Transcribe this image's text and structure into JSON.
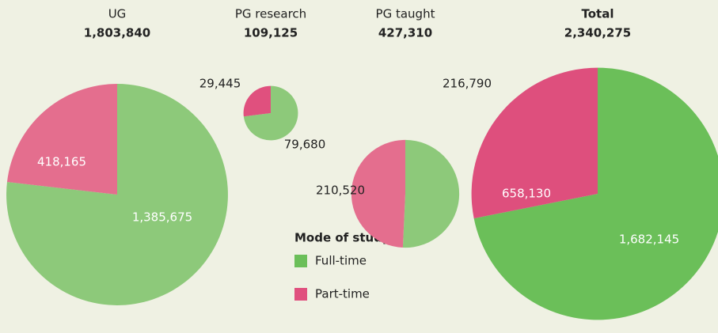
{
  "chart_data": [
    {
      "type": "pie",
      "title": "UG",
      "total": {
        "value": 1803840,
        "label": "1,803,840"
      },
      "categories": [
        "Full-time",
        "Part-time"
      ],
      "values": [
        1385675,
        418165
      ],
      "value_labels": [
        "1,385,675",
        "418,165"
      ],
      "colors": [
        "#8dc97a",
        "#e46e8e"
      ]
    },
    {
      "type": "pie",
      "title": "PG research",
      "total": {
        "value": 109125,
        "label": "109,125"
      },
      "categories": [
        "Full-time",
        "Part-time"
      ],
      "values": [
        79680,
        29445
      ],
      "value_labels": [
        "79,680",
        "29,445"
      ],
      "colors": [
        "#8dc97a",
        "#e0507e"
      ]
    },
    {
      "type": "pie",
      "title": "PG taught",
      "total": {
        "value": 427310,
        "label": "427,310"
      },
      "categories": [
        "Full-time",
        "Part-time"
      ],
      "values": [
        216790,
        210520
      ],
      "value_labels": [
        "216,790",
        "210,520"
      ],
      "colors": [
        "#8dc97a",
        "#e46e8e"
      ]
    },
    {
      "type": "pie",
      "title": "Total",
      "total": {
        "value": 2340275,
        "label": "2,340,275"
      },
      "categories": [
        "Full-time",
        "Part-time"
      ],
      "values": [
        1682145,
        658130
      ],
      "value_labels": [
        "1,682,145",
        "658,130"
      ],
      "colors": [
        "#6bbf59",
        "#de4f7d"
      ]
    }
  ],
  "legend_title": "Mode of study",
  "legend_colors": [
    "#6bbf59",
    "#e0507e"
  ]
}
